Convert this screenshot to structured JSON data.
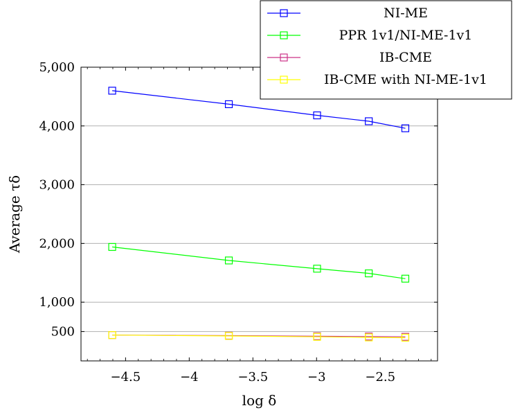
{
  "chart_data": {
    "type": "line",
    "title": "",
    "xlabel": "log δ",
    "ylabel": "Average τδ",
    "xlim": [
      -4.85,
      -2.05
    ],
    "ylim": [
      0,
      5000
    ],
    "xticks": [
      -4.5,
      -4,
      -3.5,
      -3,
      -2.5
    ],
    "xtick_labels": [
      "−4.5",
      "−4",
      "−3.5",
      "−3",
      "−2.5"
    ],
    "yticks": [
      500,
      1000,
      2000,
      3000,
      4000,
      5000
    ],
    "ytick_labels": [
      "500",
      "1,000",
      "2,000",
      "3,000",
      "4,000",
      "5,000"
    ],
    "grid": "horizontal major lines",
    "legend_position": "top-right (outside, overlapping)",
    "x": [
      -4.605,
      -3.689,
      -2.996,
      -2.59,
      -2.303
    ],
    "series": [
      {
        "name": "NI-ME",
        "color": "#0000ff",
        "marker": "square",
        "values": [
          4600,
          4370,
          4180,
          4080,
          3960
        ]
      },
      {
        "name": "PPR 1v1/NI-ME-1v1",
        "color": "#00ff00",
        "marker": "square",
        "values": [
          1940,
          1710,
          1570,
          1490,
          1400
        ]
      },
      {
        "name": "IB-CME",
        "color": "#cc3388",
        "marker": "square",
        "values": [
          440,
          430,
          420,
          415,
          410
        ]
      },
      {
        "name": "IB-CME with NI-ME-1v1",
        "color": "#ffff00",
        "marker": "square",
        "values": [
          440,
          425,
          410,
          400,
          395
        ]
      }
    ]
  }
}
